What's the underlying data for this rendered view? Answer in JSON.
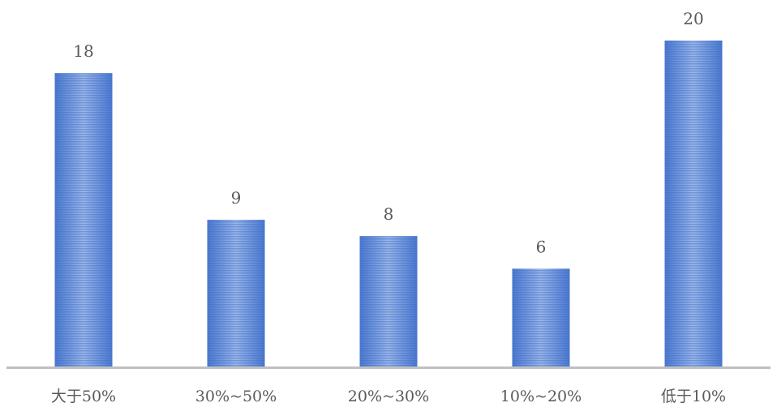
{
  "chart_data": {
    "type": "bar",
    "categories": [
      "大于50%",
      "30%~50%",
      "20%~30%",
      "10%~20%",
      "低于10%"
    ],
    "values": [
      18,
      9,
      8,
      6,
      20
    ],
    "title": "",
    "xlabel": "",
    "ylabel": "",
    "ylim": [
      0,
      20
    ],
    "grid": false,
    "legend": "none",
    "data_labels": true,
    "colors": {
      "bar": "#4a78d0",
      "bar_light": "#a9c1ec",
      "axis": "#bfbfbf",
      "text": "#595959"
    }
  }
}
